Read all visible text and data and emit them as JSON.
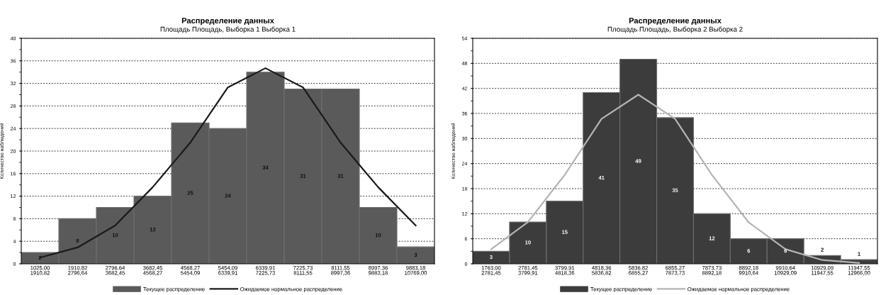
{
  "chart_data": [
    {
      "type": "bar",
      "title": "Распределение данных",
      "subtitle": "Площадь Площадь, Выборка 1 Выборка 1",
      "ylabel": "Количество наблюдений",
      "categories": [
        "1025,00\n1910,82",
        "1910,82\n2796,64",
        "2796,64\n3682,45",
        "3682,45\n4568,27",
        "4568,27\n5454,09",
        "5454,09\n6339,91",
        "6339,91\n7225,73",
        "7225,73\n8111,55",
        "8111,55\n8997,36",
        "8997,36\n9883,18",
        "9883,18\n10769,00"
      ],
      "series": [
        {
          "name": "Текущее распределение",
          "color": "#5a5a5a",
          "values": [
            2,
            8,
            10,
            12,
            25,
            24,
            34,
            31,
            31,
            10,
            3
          ],
          "value_labels": [
            "2",
            "8",
            "10",
            "12",
            "25",
            "24",
            "34",
            "31",
            "31",
            "10",
            "3"
          ]
        },
        {
          "name": "Ожидаемое нормальное распределение",
          "type": "line",
          "color": "#1a1a1a",
          "values": [
            1.1,
            2.9,
            6.8,
            13.6,
            21.5,
            31.3,
            34.7,
            31.3,
            21.5,
            13.6,
            6.8
          ]
        }
      ],
      "ylim": [
        0,
        40
      ],
      "yticks": [
        0,
        4,
        8,
        12,
        16,
        20,
        24,
        28,
        32,
        36,
        40
      ],
      "grid": "y",
      "legend": "bottom"
    },
    {
      "type": "bar",
      "title": "Распределение данных",
      "subtitle": "Площадь Площадь, Выборка 2 Выборка 2",
      "ylabel": "Количество наблюдений",
      "categories": [
        "1763,00\n2781,45",
        "2781,45\n3799,91",
        "3799,91\n4818,36",
        "4818,36\n5836,82",
        "5836,82\n6855,27",
        "6855,27\n7873,73",
        "7873,73\n8892,18",
        "8892,18\n9910,64",
        "9910,64\n10929,09",
        "10929,09\n11947,55",
        "11947,55\n12966,00"
      ],
      "series": [
        {
          "name": "Текущее распределение",
          "color": "#3c3c3c",
          "values": [
            3,
            10,
            15,
            41,
            49,
            35,
            12,
            6,
            6,
            2,
            1
          ],
          "value_labels": [
            "3",
            "10",
            "15",
            "41",
            "49",
            "35",
            "12",
            "6",
            "6",
            "2",
            "1"
          ]
        },
        {
          "name": "Ожидаемое нормальное распределение",
          "type": "line",
          "color": "#b4b4b4",
          "values": [
            3.5,
            10.0,
            21.3,
            34.7,
            40.5,
            34.7,
            21.3,
            9.9,
            3.5,
            0.9,
            0.2
          ]
        }
      ],
      "ylim": [
        0,
        54
      ],
      "yticks": [
        0,
        6,
        12,
        18,
        24,
        30,
        36,
        42,
        48,
        54
      ],
      "grid": "y",
      "legend": "bottom"
    }
  ]
}
